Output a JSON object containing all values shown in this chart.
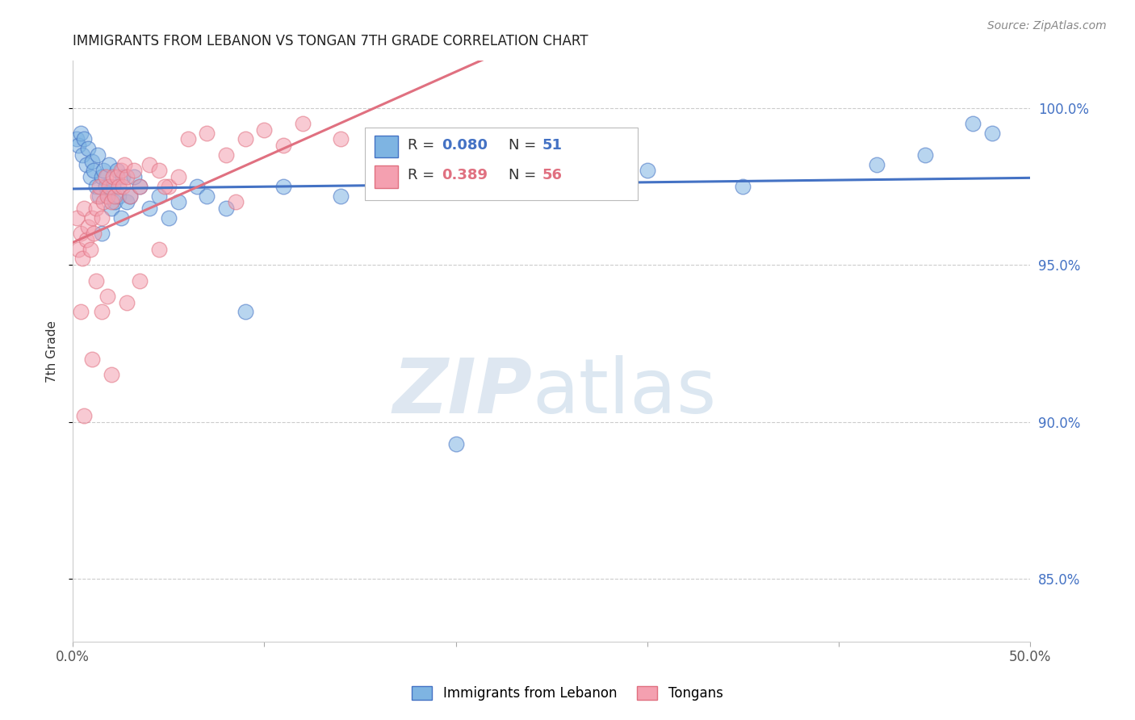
{
  "title": "IMMIGRANTS FROM LEBANON VS TONGAN 7TH GRADE CORRELATION CHART",
  "source": "Source: ZipAtlas.com",
  "ylabel": "7th Grade",
  "xlim": [
    0.0,
    50.0
  ],
  "ylim": [
    83.0,
    101.5
  ],
  "yticks": [
    85.0,
    90.0,
    95.0,
    100.0
  ],
  "ytick_labels": [
    "85.0%",
    "90.0%",
    "95.0%",
    "100.0%"
  ],
  "xticks": [
    0.0,
    10.0,
    20.0,
    30.0,
    40.0,
    50.0
  ],
  "xtick_labels": [
    "0.0%",
    "",
    "",
    "",
    "",
    "50.0%"
  ],
  "legend_label_1": "Immigrants from Lebanon",
  "legend_label_2": "Tongans",
  "color_lebanon": "#7eb4e2",
  "color_tongan": "#f4a0b0",
  "color_line_lebanon": "#4472c4",
  "color_line_tongan": "#e07080",
  "color_text_blue": "#4472c4",
  "color_title": "#222222",
  "color_source": "#888888",
  "color_axis_label": "#333333",
  "background_color": "#ffffff",
  "lebanon_x": [
    0.2,
    0.3,
    0.4,
    0.5,
    0.6,
    0.7,
    0.8,
    0.9,
    1.0,
    1.1,
    1.2,
    1.3,
    1.4,
    1.5,
    1.6,
    1.7,
    1.8,
    1.9,
    2.0,
    2.1,
    2.2,
    2.3,
    2.4,
    2.5,
    2.6,
    2.8,
    3.0,
    3.5,
    4.0,
    4.5,
    5.5,
    6.5,
    8.0,
    9.0,
    11.0,
    14.0,
    16.0,
    20.0,
    22.5,
    25.0,
    28.5,
    30.0,
    35.0,
    42.0,
    44.5,
    47.0,
    48.0,
    5.0,
    3.2,
    7.0,
    1.5
  ],
  "lebanon_y": [
    99.0,
    98.8,
    99.2,
    98.5,
    99.0,
    98.2,
    98.7,
    97.8,
    98.3,
    98.0,
    97.5,
    98.5,
    97.2,
    97.8,
    98.0,
    97.5,
    97.3,
    98.2,
    96.8,
    97.5,
    97.0,
    98.0,
    97.2,
    96.5,
    97.8,
    97.0,
    97.2,
    97.5,
    96.8,
    97.2,
    97.0,
    97.5,
    96.8,
    93.5,
    97.5,
    97.2,
    97.5,
    89.3,
    97.8,
    97.5,
    97.8,
    98.0,
    97.5,
    98.2,
    98.5,
    99.5,
    99.2,
    96.5,
    97.8,
    97.2,
    96.0
  ],
  "tongan_x": [
    0.2,
    0.3,
    0.4,
    0.5,
    0.6,
    0.7,
    0.8,
    0.9,
    1.0,
    1.1,
    1.2,
    1.3,
    1.4,
    1.5,
    1.6,
    1.7,
    1.8,
    1.9,
    2.0,
    2.1,
    2.2,
    2.3,
    2.4,
    2.5,
    2.6,
    2.7,
    2.8,
    3.0,
    3.2,
    3.5,
    4.0,
    4.5,
    5.0,
    5.5,
    6.0,
    7.0,
    8.0,
    9.0,
    10.0,
    11.0,
    12.0,
    14.0,
    16.0,
    18.0,
    4.8,
    0.4,
    0.6,
    1.0,
    1.5,
    2.0,
    3.5,
    1.8,
    2.8,
    4.5,
    8.5,
    1.2
  ],
  "tongan_y": [
    96.5,
    95.5,
    96.0,
    95.2,
    96.8,
    95.8,
    96.2,
    95.5,
    96.5,
    96.0,
    96.8,
    97.2,
    97.5,
    96.5,
    97.0,
    97.8,
    97.2,
    97.5,
    97.0,
    97.8,
    97.2,
    97.8,
    97.5,
    98.0,
    97.5,
    98.2,
    97.8,
    97.2,
    98.0,
    97.5,
    98.2,
    98.0,
    97.5,
    97.8,
    99.0,
    99.2,
    98.5,
    99.0,
    99.3,
    98.8,
    99.5,
    99.0,
    98.5,
    99.0,
    97.5,
    93.5,
    90.2,
    92.0,
    93.5,
    91.5,
    94.5,
    94.0,
    93.8,
    95.5,
    97.0,
    94.5
  ]
}
